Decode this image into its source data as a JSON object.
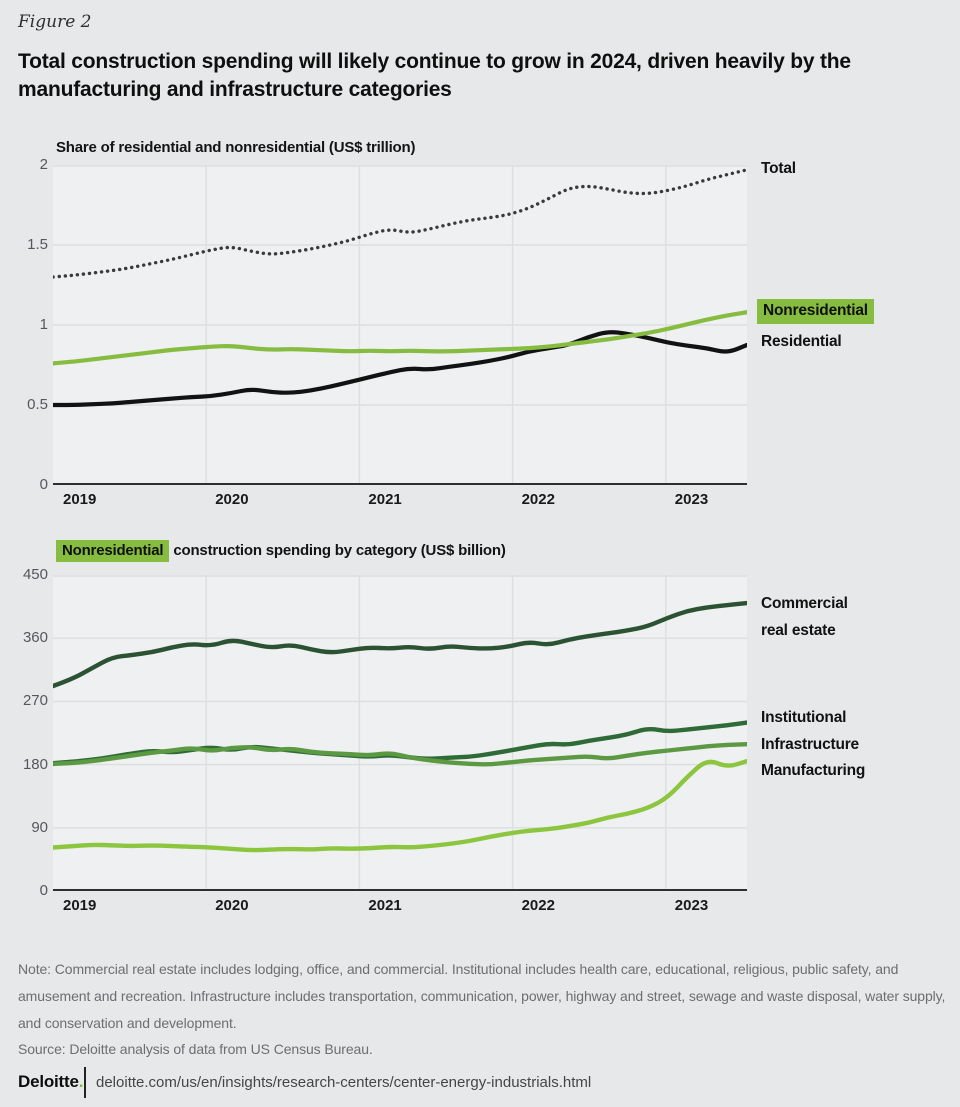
{
  "figure_label": "Figure 2",
  "title": "Total construction spending will likely continue to grow in 2024, driven heavily by the manufacturing and infrastructure categories",
  "colors": {
    "highlight_green": "#86bc40",
    "brand_dot_green": "#86bc25",
    "page_bg": "#e7e8ea",
    "plot_bg": "#eff0f1",
    "gridline": "#dcdee0",
    "axis": "#2f2f31"
  },
  "chart_data": [
    {
      "type": "line",
      "title": "Share of residential and nonresidential (US$ trillion)",
      "ylabel": "US$ trillion",
      "ylim": [
        0,
        2
      ],
      "y_ticks": [
        0,
        0.5,
        1,
        1.5,
        2
      ],
      "x_ticks": [
        "2019",
        "2020",
        "2021",
        "2022",
        "2023"
      ],
      "x_range": [
        2019,
        2023.53
      ],
      "grid": true,
      "legend_position": "right-of-line-ends",
      "series": [
        {
          "name": "total",
          "label": "Total",
          "style": "dotted",
          "color": "#3a3a3a",
          "width": 3.4,
          "values": [
            1.3,
            1.31,
            1.325,
            1.34,
            1.36,
            1.385,
            1.41,
            1.44,
            1.47,
            1.49,
            1.46,
            1.44,
            1.455,
            1.475,
            1.5,
            1.53,
            1.57,
            1.6,
            1.575,
            1.6,
            1.63,
            1.655,
            1.67,
            1.69,
            1.73,
            1.79,
            1.855,
            1.87,
            1.85,
            1.825,
            1.82,
            1.84,
            1.87,
            1.91,
            1.94,
            1.97
          ]
        },
        {
          "name": "residential",
          "label": "Residential",
          "style": "solid",
          "color": "#121212",
          "width": 4.2,
          "values": [
            0.5,
            0.5,
            0.505,
            0.51,
            0.52,
            0.53,
            0.54,
            0.55,
            0.555,
            0.575,
            0.6,
            0.58,
            0.575,
            0.59,
            0.615,
            0.645,
            0.675,
            0.705,
            0.73,
            0.72,
            0.74,
            0.755,
            0.775,
            0.8,
            0.835,
            0.855,
            0.875,
            0.925,
            0.96,
            0.945,
            0.92,
            0.89,
            0.87,
            0.855,
            0.825,
            0.875
          ]
        },
        {
          "name": "nonresidential",
          "label": "Nonresidential",
          "style": "solid",
          "color": "#86bc40",
          "width": 4.2,
          "label_highlighted": true,
          "values": [
            0.76,
            0.77,
            0.785,
            0.8,
            0.815,
            0.83,
            0.845,
            0.855,
            0.865,
            0.87,
            0.855,
            0.845,
            0.85,
            0.845,
            0.84,
            0.835,
            0.84,
            0.835,
            0.84,
            0.835,
            0.835,
            0.84,
            0.845,
            0.85,
            0.855,
            0.865,
            0.88,
            0.895,
            0.91,
            0.93,
            0.95,
            0.975,
            1.005,
            1.035,
            1.06,
            1.08
          ]
        }
      ]
    },
    {
      "type": "line",
      "title_highlight": "Nonresidential",
      "title_rest": " construction spending by category (US$ billion)",
      "ylabel": "US$ billion",
      "ylim": [
        0,
        450
      ],
      "y_ticks": [
        0,
        90,
        180,
        270,
        360,
        450
      ],
      "x_ticks": [
        "2019",
        "2020",
        "2021",
        "2022",
        "2023"
      ],
      "x_range": [
        2019,
        2023.53
      ],
      "grid": true,
      "legend_position": "right-of-line-ends",
      "series": [
        {
          "name": "commercial-real-estate",
          "label": "Commercial real estate",
          "style": "solid",
          "color": "#2c5234",
          "width": 4.4,
          "values": [
            292,
            302,
            318,
            333,
            336,
            340,
            347,
            352,
            349,
            358,
            352,
            346,
            351,
            344,
            339,
            343,
            347,
            345,
            348,
            344,
            349,
            346,
            345,
            348,
            355,
            350,
            358,
            363,
            367,
            371,
            377,
            389,
            399,
            404,
            407,
            410
          ]
        },
        {
          "name": "institutional",
          "label": "Institutional",
          "style": "solid",
          "color": "#2f6b36",
          "width": 4.4,
          "values": [
            182,
            184,
            187,
            191,
            196,
            200,
            197,
            201,
            205,
            200,
            206,
            203,
            200,
            197,
            195,
            193,
            191,
            194,
            190,
            188,
            190,
            191,
            195,
            200,
            205,
            210,
            208,
            214,
            218,
            223,
            232,
            227,
            230,
            233,
            236,
            240
          ]
        },
        {
          "name": "infrastructure",
          "label": "Infrastructure",
          "style": "solid",
          "color": "#5b9a43",
          "width": 4.4,
          "values": [
            181,
            182,
            185,
            189,
            193,
            197,
            200,
            204,
            199,
            204,
            205,
            200,
            203,
            198,
            196,
            195,
            193,
            197,
            190,
            186,
            183,
            181,
            180,
            183,
            186,
            188,
            190,
            192,
            188,
            193,
            197,
            200,
            203,
            206,
            208,
            209
          ]
        },
        {
          "name": "manufacturing",
          "label": "Manufacturing",
          "style": "solid",
          "color": "#8cc63e",
          "width": 4.4,
          "values": [
            62,
            64,
            66,
            65,
            64,
            65,
            64,
            63,
            62,
            60,
            58,
            59,
            60,
            59,
            61,
            60,
            61,
            63,
            62,
            64,
            67,
            71,
            77,
            82,
            86,
            88,
            92,
            97,
            105,
            110,
            118,
            133,
            163,
            188,
            176,
            185
          ]
        }
      ]
    }
  ],
  "note": "Note: Commercial real estate includes lodging, office, and commercial. Institutional includes health care, educational, religious, public safety, and amusement and recreation. Infrastructure includes transportation, communication, power, highway and street, sewage and waste disposal, water supply, and conservation and development.",
  "source": "Source: Deloitte analysis of data from US Census Bureau.",
  "footer": {
    "brand": "Deloitte",
    "brand_dot": ".",
    "url": "deloitte.com/us/en/insights/research-centers/center-energy-industrials.html"
  }
}
